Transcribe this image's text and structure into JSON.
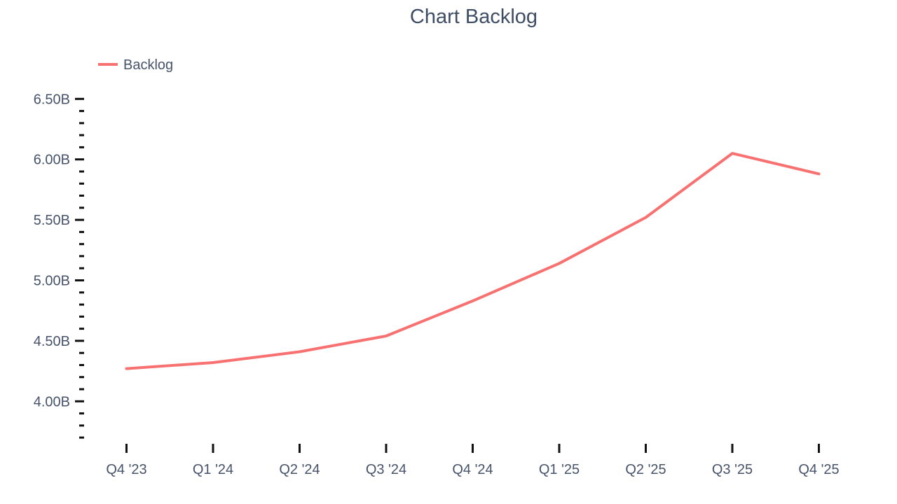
{
  "title": "Chart Backlog",
  "legend": {
    "position": "top-left",
    "items": [
      {
        "label": "Backlog",
        "color": "#f87171"
      }
    ]
  },
  "colors": {
    "background": "#ffffff",
    "title_text": "#3e4d63",
    "axis_text": "#47536a",
    "tick_mark": "#111111",
    "series_backlog": "#f87171"
  },
  "chart_data": {
    "type": "line",
    "title": "Chart Backlog",
    "xlabel": "",
    "ylabel": "",
    "categories": [
      "Q4 '23",
      "Q1 '24",
      "Q2 '24",
      "Q3 '24",
      "Q4 '24",
      "Q1 '25",
      "Q2 '25",
      "Q3 '25",
      "Q4 '25"
    ],
    "series": [
      {
        "name": "Backlog",
        "color": "#f87171",
        "values": [
          4.27,
          4.32,
          4.41,
          4.54,
          4.83,
          5.14,
          5.52,
          6.05,
          5.88
        ]
      }
    ],
    "ylim": [
      3.7,
      6.5
    ],
    "y_major_step": 0.5,
    "y_minor_step": 0.1,
    "y_tick_suffix": "B",
    "y_tick_labels": [
      "6.50B",
      "6.00B",
      "5.50B",
      "5.00B",
      "4.50B",
      "4.00B"
    ],
    "grid": false,
    "axis_lines": false,
    "legend_position": "top-left"
  }
}
